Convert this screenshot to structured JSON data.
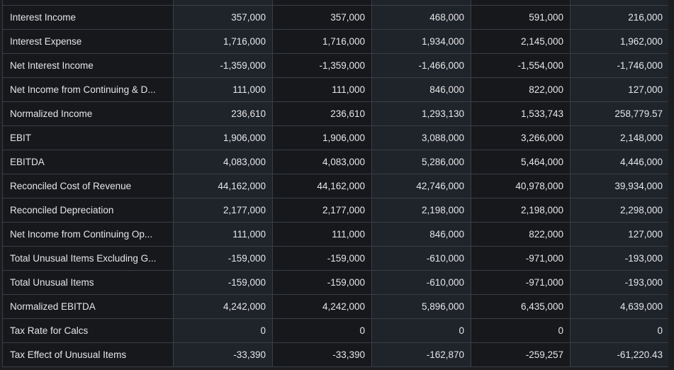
{
  "rows": [
    {
      "label": "Interest Income",
      "values": [
        "357,000",
        "357,000",
        "468,000",
        "591,000",
        "216,000"
      ]
    },
    {
      "label": "Interest Expense",
      "values": [
        "1,716,000",
        "1,716,000",
        "1,934,000",
        "2,145,000",
        "1,962,000"
      ]
    },
    {
      "label": "Net Interest Income",
      "values": [
        "-1,359,000",
        "-1,359,000",
        "-1,466,000",
        "-1,554,000",
        "-1,746,000"
      ]
    },
    {
      "label": "Net Income from Continuing & D...",
      "values": [
        "111,000",
        "111,000",
        "846,000",
        "822,000",
        "127,000"
      ]
    },
    {
      "label": "Normalized Income",
      "values": [
        "236,610",
        "236,610",
        "1,293,130",
        "1,533,743",
        "258,779.57"
      ]
    },
    {
      "label": "EBIT",
      "values": [
        "1,906,000",
        "1,906,000",
        "3,088,000",
        "3,266,000",
        "2,148,000"
      ]
    },
    {
      "label": "EBITDA",
      "values": [
        "4,083,000",
        "4,083,000",
        "5,286,000",
        "5,464,000",
        "4,446,000"
      ]
    },
    {
      "label": "Reconciled Cost of Revenue",
      "values": [
        "44,162,000",
        "44,162,000",
        "42,746,000",
        "40,978,000",
        "39,934,000"
      ]
    },
    {
      "label": "Reconciled Depreciation",
      "values": [
        "2,177,000",
        "2,177,000",
        "2,198,000",
        "2,198,000",
        "2,298,000"
      ]
    },
    {
      "label": "Net Income from Continuing Op...",
      "values": [
        "111,000",
        "111,000",
        "846,000",
        "822,000",
        "127,000"
      ]
    },
    {
      "label": "Total Unusual Items Excluding G...",
      "values": [
        "-159,000",
        "-159,000",
        "-610,000",
        "-971,000",
        "-193,000"
      ]
    },
    {
      "label": "Total Unusual Items",
      "values": [
        "-159,000",
        "-159,000",
        "-610,000",
        "-971,000",
        "-193,000"
      ]
    },
    {
      "label": "Normalized EBITDA",
      "values": [
        "4,242,000",
        "4,242,000",
        "5,896,000",
        "6,435,000",
        "4,639,000"
      ]
    },
    {
      "label": "Tax Rate for Calcs",
      "values": [
        "0",
        "0",
        "0",
        "0",
        "0"
      ]
    },
    {
      "label": "Tax Effect of Unusual Items",
      "values": [
        "-33,390",
        "-33,390",
        "-162,870",
        "-259,257",
        "-61,220.43"
      ]
    }
  ]
}
